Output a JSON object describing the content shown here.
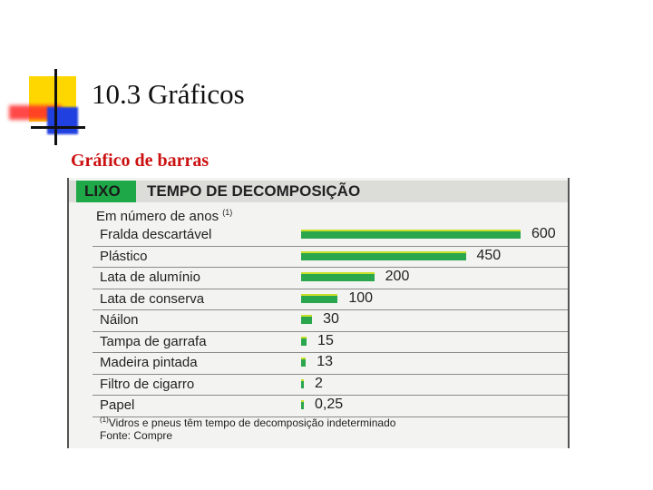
{
  "slide": {
    "title": "10.3 Gráficos",
    "subtitle": "Gráfico de barras"
  },
  "chart_data": {
    "type": "bar",
    "orientation": "horizontal",
    "tag": "LIXO",
    "title": "TEMPO DE DECOMPOSIÇÃO",
    "units": "Em número de anos",
    "units_marker": "(1)",
    "categories": [
      "Fralda descartável",
      "Plástico",
      "Lata de alumínio",
      "Lata de conserva",
      "Náilon",
      "Tampa de garrafa",
      "Madeira pintada",
      "Filtro de cigarro",
      "Papel"
    ],
    "values": [
      600,
      450,
      200,
      100,
      30,
      15,
      13,
      2,
      0.25
    ],
    "value_labels": [
      "600",
      "450",
      "200",
      "100",
      "30",
      "15",
      "13",
      "2",
      "0,25"
    ],
    "footnote_marker": "(1)",
    "footnote": "Vidros e pneus têm tempo de decomposição indeterminado",
    "source": "Fonte: Compre",
    "colors": {
      "bar": "#2aa64d",
      "bar_highlight": "#c9e028",
      "tag": "#1fa847"
    }
  }
}
